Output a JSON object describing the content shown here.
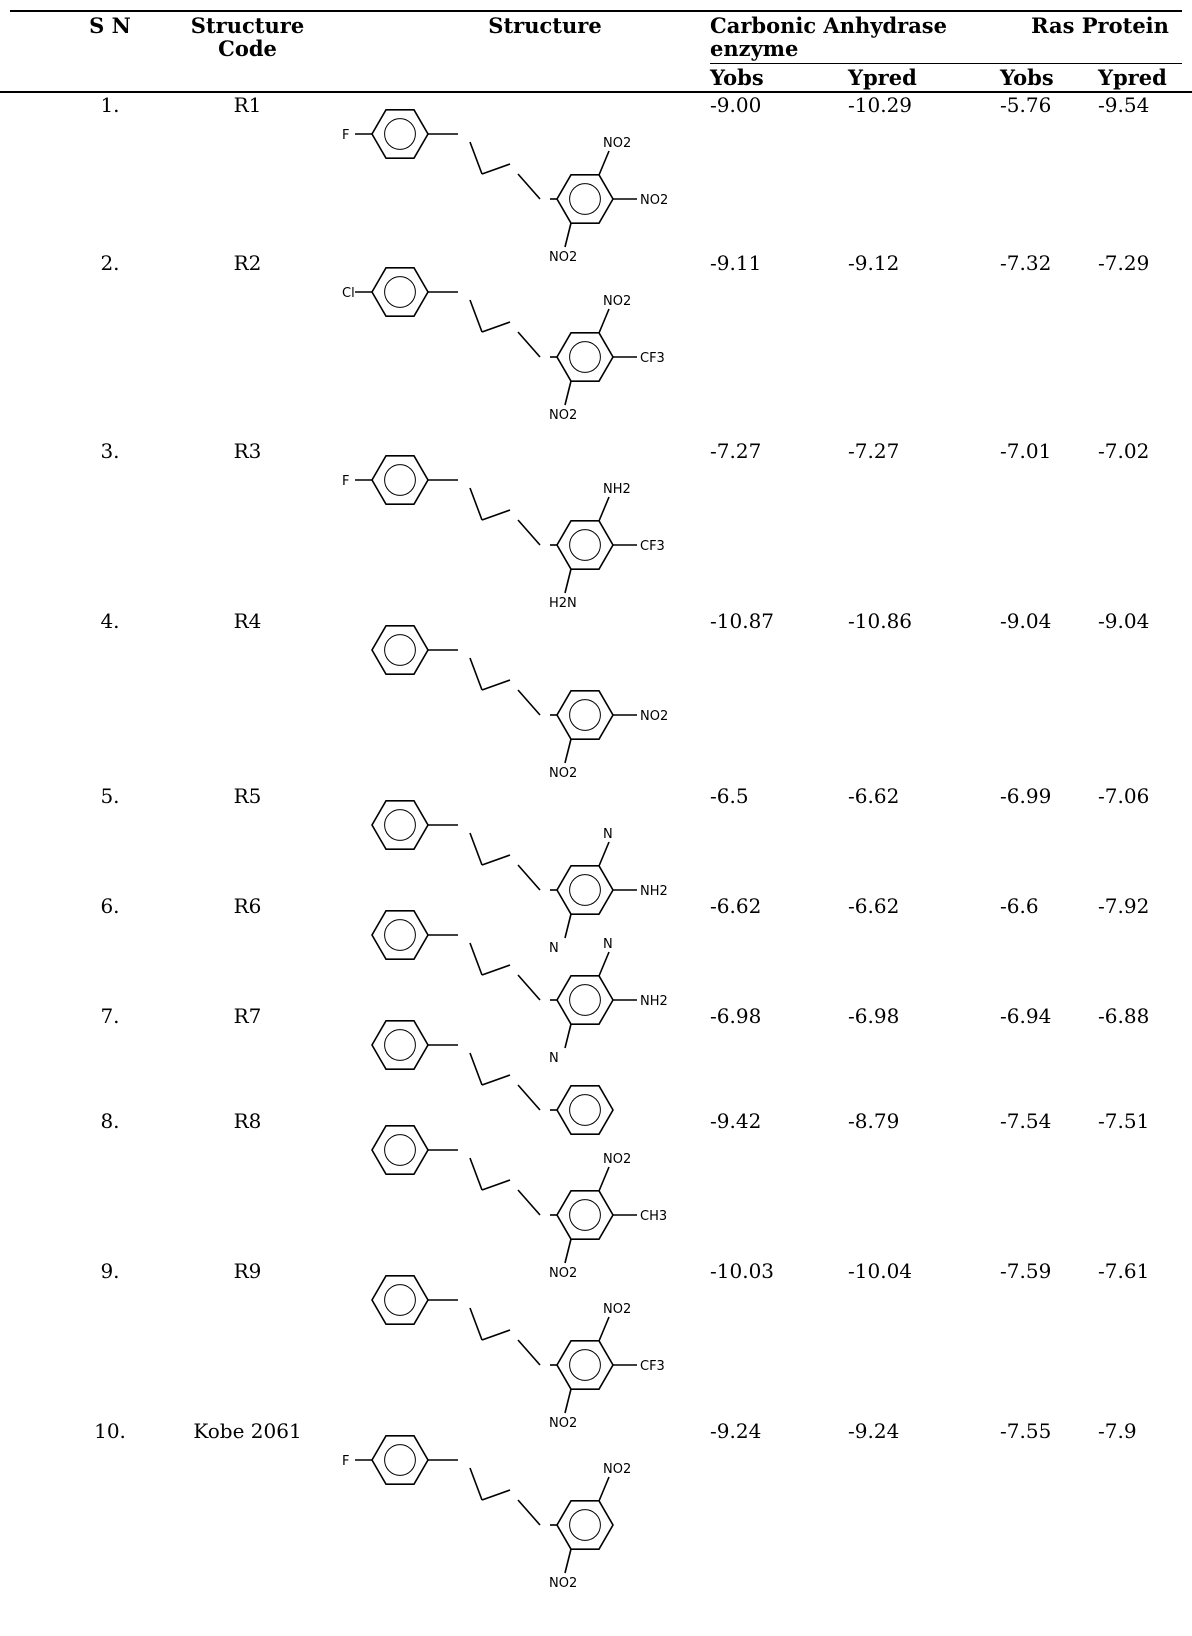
{
  "table": {
    "headers": {
      "sn": "S N",
      "code": "Structure Code",
      "structure": "Structure",
      "carbonic": "Carbonic Anhydrase enzyme",
      "ras": "Ras Protein",
      "yobs": "Yobs",
      "ypred": "Ypred"
    },
    "rows": [
      {
        "sn": "1.",
        "code": "R1",
        "ca_yobs": "-9.00",
        "ca_ypred": "-10.29",
        "ras_yobs": "-5.76",
        "ras_ypred": "-9.54",
        "structure": {
          "left": "F",
          "right1": "NO2",
          "right2": "NO2",
          "right3": "NO2"
        }
      },
      {
        "sn": "2.",
        "code": "R2",
        "ca_yobs": "-9.11",
        "ca_ypred": "-9.12",
        "ras_yobs": "-7.32",
        "ras_ypred": "-7.29",
        "structure": {
          "left": "Cl",
          "right1": "NO2",
          "right2": "CF3",
          "right3": "NO2"
        }
      },
      {
        "sn": "3.",
        "code": "R3",
        "ca_yobs": "-7.27",
        "ca_ypred": "-7.27",
        "ras_yobs": "-7.01",
        "ras_ypred": "-7.02",
        "structure": {
          "left": "F",
          "right1": "NH2",
          "right2": "CF3",
          "right3": "H2N"
        }
      },
      {
        "sn": "4.",
        "code": "R4",
        "ca_yobs": "-10.87",
        "ca_ypred": "-10.86",
        "ras_yobs": "-9.04",
        "ras_ypred": "-9.04",
        "structure": {
          "left": "",
          "right1": "",
          "right2": "NO2",
          "right3": "NO2"
        }
      },
      {
        "sn": "5.",
        "code": "R5",
        "ca_yobs": "-6.5",
        "ca_ypred": "-6.62",
        "ras_yobs": "-6.99",
        "ras_ypred": "-7.06",
        "structure": {
          "left": "",
          "right1": "N",
          "right2": "NH2",
          "right3": "N"
        }
      },
      {
        "sn": "6.",
        "code": "R6",
        "ca_yobs": "-6.62",
        "ca_ypred": "-6.62",
        "ras_yobs": "-6.6",
        "ras_ypred": "-7.92",
        "structure": {
          "left": "",
          "right1": "N",
          "right2": "NH2",
          "right3": "N"
        }
      },
      {
        "sn": "7.",
        "code": "R7",
        "ca_yobs": "-6.98",
        "ca_ypred": "-6.98",
        "ras_yobs": "-6.94",
        "ras_ypred": "-6.88",
        "structure": {
          "left": "",
          "right1": "",
          "right2": "",
          "right3": ""
        }
      },
      {
        "sn": "8.",
        "code": "R8",
        "ca_yobs": "-9.42",
        "ca_ypred": "-8.79",
        "ras_yobs": "-7.54",
        "ras_ypred": "-7.51",
        "structure": {
          "left": "",
          "right1": "NO2",
          "right2": "CH3",
          "right3": "NO2"
        }
      },
      {
        "sn": "9.",
        "code": "R9",
        "ca_yobs": "-10.03",
        "ca_ypred": "-10.04",
        "ras_yobs": "-7.59",
        "ras_ypred": "-7.61",
        "structure": {
          "left": "",
          "right1": "NO2",
          "right2": "CF3",
          "right3": "NO2"
        }
      },
      {
        "sn": "10.",
        "code": "Kobe 2061",
        "ca_yobs": "-9.24",
        "ca_ypred": "-9.24",
        "ras_yobs": "-7.55",
        "ras_ypred": "-7.9",
        "structure": {
          "left": "F",
          "right1": "NO2",
          "right2": "",
          "right3": "NO2"
        }
      }
    ]
  }
}
